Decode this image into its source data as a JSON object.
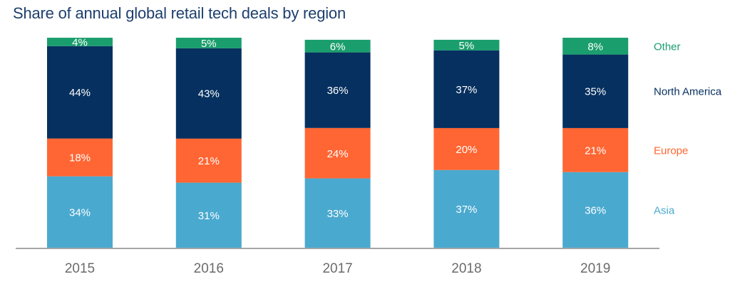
{
  "chart_data": {
    "type": "bar",
    "stacked": true,
    "title": "Share of annual global retail tech deals by region",
    "xlabel": "",
    "ylabel": "",
    "ylim": [
      0,
      100
    ],
    "grid": false,
    "legend_position": "right",
    "categories": [
      "2015",
      "2016",
      "2017",
      "2018",
      "2019"
    ],
    "series": [
      {
        "name": "Asia",
        "color": "#4aa9cf",
        "values": [
          34,
          31,
          33,
          37,
          36
        ]
      },
      {
        "name": "Europe",
        "color": "#ff6633",
        "values": [
          18,
          21,
          24,
          20,
          21
        ]
      },
      {
        "name": "North America",
        "color": "#06305f",
        "values": [
          44,
          43,
          36,
          37,
          35
        ]
      },
      {
        "name": "Other",
        "color": "#1a9e6e",
        "values": [
          4,
          5,
          6,
          5,
          8
        ]
      }
    ],
    "value_suffix": "%"
  }
}
